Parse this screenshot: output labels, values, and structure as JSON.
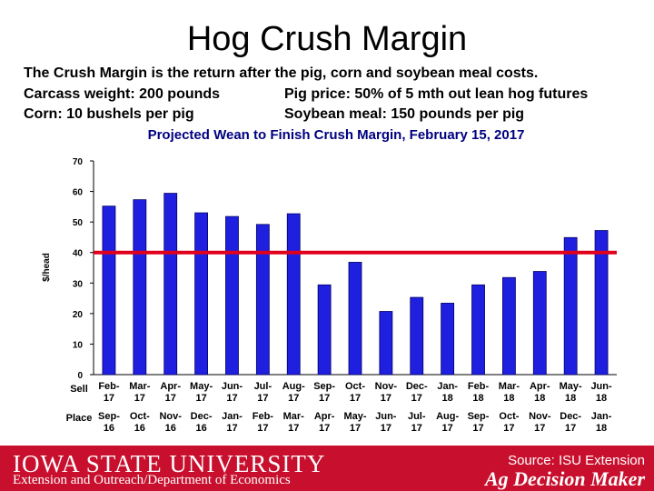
{
  "slide": {
    "title": "Hog Crush Margin",
    "line1": "The Crush Margin is the return after the pig, corn and soybean meal costs.",
    "line2a": "Carcass weight:  200 pounds",
    "line2b": "Pig price:  50% of 5 mth out lean hog futures",
    "line3a": "Corn:  10 bushels per pig",
    "line3b": "Soybean meal:  150 pounds per pig"
  },
  "footer": {
    "university": "IOWA STATE UNIVERSITY",
    "department": "Extension and Outreach/Department of Economics",
    "source": "Source: ISU Extension",
    "brand": "Ag Decision Maker"
  },
  "chart_data": {
    "type": "bar",
    "title": "Projected Wean to Finish Crush Margin, February 15, 2017",
    "ylabel": "$/head",
    "ylim": [
      0,
      70
    ],
    "yticks": [
      0,
      10,
      20,
      30,
      40,
      50,
      60,
      70
    ],
    "row_labels": {
      "sell": "Sell",
      "place": "Place"
    },
    "categories": [
      {
        "sell": [
          "Feb-",
          "17"
        ],
        "place": [
          "Sep-",
          "16"
        ]
      },
      {
        "sell": [
          "Mar-",
          "17"
        ],
        "place": [
          "Oct-",
          "16"
        ]
      },
      {
        "sell": [
          "Apr-",
          "17"
        ],
        "place": [
          "Nov-",
          "16"
        ]
      },
      {
        "sell": [
          "May-",
          "17"
        ],
        "place": [
          "Dec-",
          "16"
        ]
      },
      {
        "sell": [
          "Jun-",
          "17"
        ],
        "place": [
          "Jan-",
          "17"
        ]
      },
      {
        "sell": [
          "Jul-",
          "17"
        ],
        "place": [
          "Feb-",
          "17"
        ]
      },
      {
        "sell": [
          "Aug-",
          "17"
        ],
        "place": [
          "Mar-",
          "17"
        ]
      },
      {
        "sell": [
          "Sep-",
          "17"
        ],
        "place": [
          "Apr-",
          "17"
        ]
      },
      {
        "sell": [
          "Oct-",
          "17"
        ],
        "place": [
          "May-",
          "17"
        ]
      },
      {
        "sell": [
          "Nov-",
          "17"
        ],
        "place": [
          "Jun-",
          "17"
        ]
      },
      {
        "sell": [
          "Dec-",
          "17"
        ],
        "place": [
          "Jul-",
          "17"
        ]
      },
      {
        "sell": [
          "Jan-",
          "18"
        ],
        "place": [
          "Aug-",
          "17"
        ]
      },
      {
        "sell": [
          "Feb-",
          "18"
        ],
        "place": [
          "Sep-",
          "17"
        ]
      },
      {
        "sell": [
          "Mar-",
          "18"
        ],
        "place": [
          "Oct-",
          "17"
        ]
      },
      {
        "sell": [
          "Apr-",
          "18"
        ],
        "place": [
          "Nov-",
          "17"
        ]
      },
      {
        "sell": [
          "May-",
          "18"
        ],
        "place": [
          "Dec-",
          "17"
        ]
      },
      {
        "sell": [
          "Jun-",
          "18"
        ],
        "place": [
          "Jan-",
          "18"
        ]
      }
    ],
    "values": [
      55.2,
      57.3,
      59.4,
      53.0,
      51.8,
      49.2,
      52.7,
      29.4,
      36.8,
      20.7,
      25.3,
      23.4,
      29.4,
      31.8,
      33.8,
      44.9,
      47.2
    ],
    "reference_line": 40,
    "colors": {
      "bar": "#1f1fe0",
      "bar_edge": "#000066",
      "reference": "#e0001b",
      "title": "#000080",
      "footer": "#c8102e"
    },
    "grid": false
  }
}
